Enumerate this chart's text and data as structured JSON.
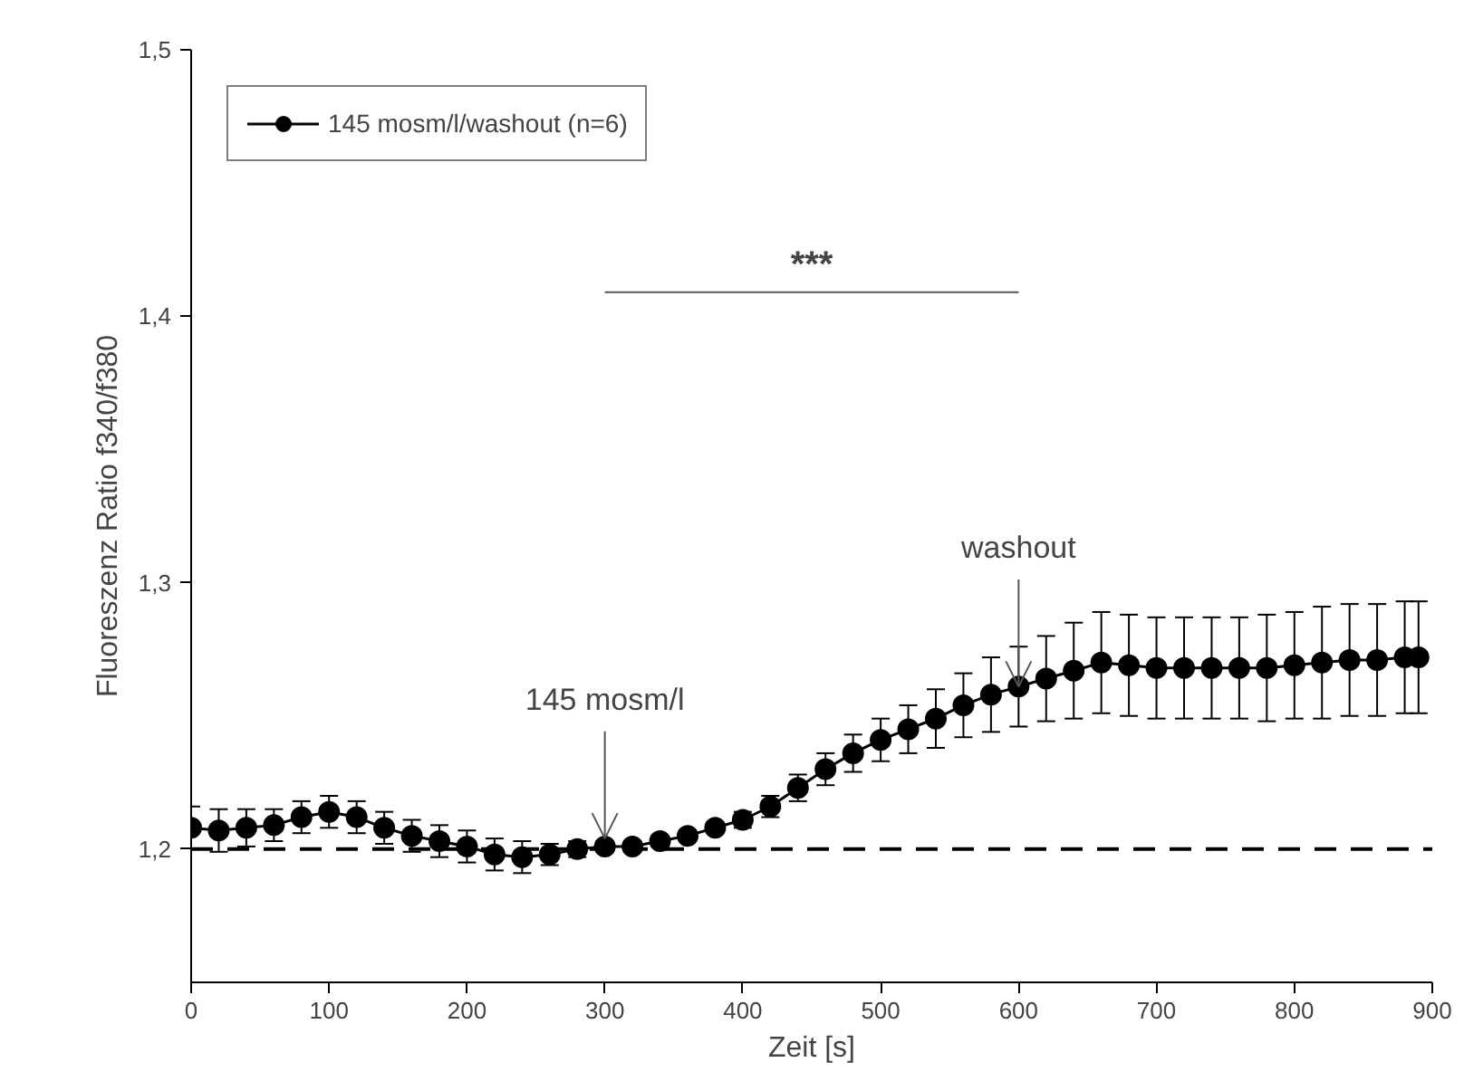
{
  "chart_data": {
    "type": "line",
    "xlabel": "Zeit [s]",
    "ylabel": "Fluoreszenz Ratio f340/f380",
    "x": [
      0,
      20,
      40,
      60,
      80,
      100,
      120,
      140,
      160,
      180,
      200,
      220,
      240,
      260,
      280,
      300,
      320,
      340,
      360,
      380,
      400,
      420,
      440,
      460,
      480,
      500,
      520,
      540,
      560,
      580,
      600,
      620,
      640,
      660,
      680,
      700,
      720,
      740,
      760,
      780,
      800,
      820,
      840,
      860,
      880,
      890
    ],
    "series": [
      {
        "name": "145 mosm/l/washout (n=6)",
        "color": "#000000",
        "values": [
          1.208,
          1.207,
          1.208,
          1.209,
          1.212,
          1.214,
          1.212,
          1.208,
          1.205,
          1.203,
          1.201,
          1.198,
          1.197,
          1.198,
          1.2,
          1.201,
          1.201,
          1.203,
          1.205,
          1.208,
          1.211,
          1.216,
          1.223,
          1.23,
          1.236,
          1.241,
          1.245,
          1.249,
          1.254,
          1.258,
          1.261,
          1.264,
          1.267,
          1.27,
          1.269,
          1.268,
          1.268,
          1.268,
          1.268,
          1.268,
          1.269,
          1.27,
          1.271,
          1.271,
          1.272,
          1.272
        ],
        "errors": [
          0.008,
          0.008,
          0.007,
          0.006,
          0.006,
          0.006,
          0.006,
          0.006,
          0.006,
          0.006,
          0.006,
          0.006,
          0.006,
          0.004,
          0.003,
          0.002,
          0.002,
          0.002,
          0.002,
          0.002,
          0.003,
          0.004,
          0.005,
          0.006,
          0.007,
          0.008,
          0.009,
          0.011,
          0.012,
          0.014,
          0.015,
          0.016,
          0.018,
          0.019,
          0.019,
          0.019,
          0.019,
          0.019,
          0.019,
          0.02,
          0.02,
          0.021,
          0.021,
          0.021,
          0.021,
          0.021
        ]
      }
    ],
    "xlim": [
      0,
      900
    ],
    "xticks": [
      0,
      100,
      200,
      300,
      400,
      500,
      600,
      700,
      800,
      900
    ],
    "ylim": [
      1.15,
      1.5
    ],
    "yticks": [
      {
        "value": 1.2,
        "label": "1,2"
      },
      {
        "value": 1.3,
        "label": "1,3"
      },
      {
        "value": 1.4,
        "label": "1,4"
      },
      {
        "value": 1.5,
        "label": "1,5"
      }
    ],
    "ref_lines": [
      {
        "axis": "y",
        "value": 1.2,
        "line_style": "dashed",
        "color": "#000000"
      }
    ],
    "annotations": [
      {
        "text": "145 mosm/l",
        "x": 300,
        "y": 1.202
      },
      {
        "text": "washout",
        "x": 600,
        "y": 1.261
      },
      "***"
    ],
    "legend": "top left",
    "marker": "circle",
    "line_style": "solid",
    "grid": false
  }
}
